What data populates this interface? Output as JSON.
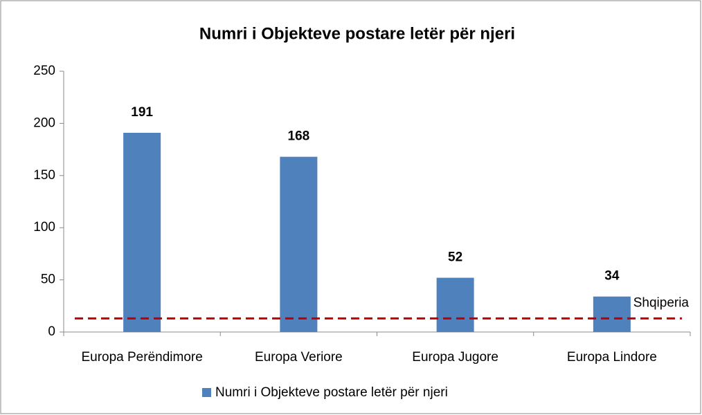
{
  "chart_data": {
    "type": "bar",
    "title": "Numri i Objekteve postare letër për njeri",
    "categories": [
      "Europa Perëndimore",
      "Europa Veriore",
      "Europa Jugore",
      "Europa Lindore"
    ],
    "series": [
      {
        "name": "Numri i Objekteve postare letër për njeri",
        "color": "#4f81bd",
        "values": [
          191,
          168,
          52,
          34
        ]
      }
    ],
    "ylim": [
      0,
      250
    ],
    "yticks": [
      0,
      50,
      100,
      150,
      200,
      250
    ],
    "grid": false,
    "legend": "bottom",
    "reference_line": {
      "value": 13,
      "label": "Shqiperia",
      "color": "#c00000"
    }
  }
}
